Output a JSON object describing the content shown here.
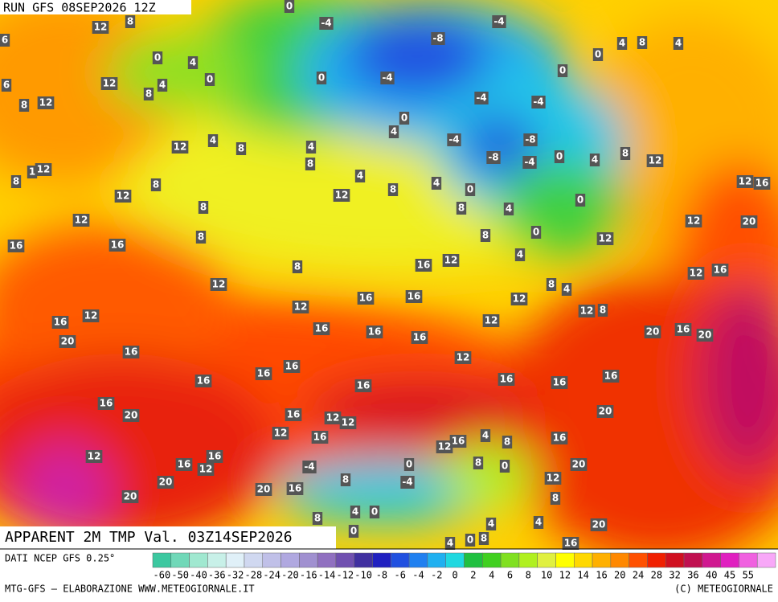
{
  "header": {
    "run": "RUN GFS 08SEP2026 12Z",
    "title": "APPARENT 2M TMP Val. 03Z14SEP2026"
  },
  "map": {
    "labels": [
      12,
      8,
      0,
      -4,
      -4,
      -8,
      6,
      0,
      4,
      0,
      12,
      4,
      6,
      8,
      0,
      -4,
      -4,
      -4,
      0,
      0,
      4,
      8,
      4,
      12,
      8,
      0,
      4,
      -4,
      -8,
      -8,
      -4,
      0,
      4,
      8,
      12,
      12,
      4,
      8,
      4,
      8,
      4,
      12,
      8,
      4,
      0,
      12,
      1,
      8,
      12,
      8,
      8,
      8,
      4,
      0,
      12,
      16,
      12,
      8,
      8,
      0,
      16,
      16,
      12,
      20,
      12,
      16,
      12,
      8,
      4,
      12,
      16,
      16,
      12,
      8,
      4,
      12,
      8,
      12,
      16,
      12,
      12,
      16,
      20,
      16,
      16,
      16,
      12,
      20,
      16,
      20,
      16,
      12,
      16,
      16,
      16,
      16,
      16,
      16,
      16,
      16,
      20,
      20,
      16,
      12,
      12,
      12,
      16,
      16,
      12,
      4,
      8,
      16,
      12,
      16,
      16,
      12,
      -4,
      0,
      8,
      0,
      20,
      8,
      -4,
      20,
      20,
      16,
      12,
      20,
      8,
      8,
      4,
      0,
      0,
      4,
      20,
      4,
      4,
      0,
      8,
      16
    ]
  },
  "legend": {
    "source": "DATI NCEP GFS 0.25°",
    "ticks": [
      -60,
      -50,
      -40,
      -36,
      -32,
      -28,
      -24,
      -20,
      -16,
      -14,
      -12,
      -10,
      -8,
      -6,
      -4,
      -2,
      0,
      2,
      4,
      6,
      8,
      10,
      12,
      14,
      16,
      20,
      24,
      28,
      32,
      36,
      40,
      45,
      55
    ],
    "colors": [
      "#3cc8a0",
      "#70d8b8",
      "#a0e8d0",
      "#c8f0e8",
      "#e0f0f8",
      "#d0d8f0",
      "#c0c0e8",
      "#b0a8e0",
      "#a090d0",
      "#9070c0",
      "#7050b0",
      "#4030a0",
      "#2020c0",
      "#2050e0",
      "#2080f0",
      "#20b0f0",
      "#20d8e0",
      "#20c040",
      "#40d020",
      "#80e020",
      "#b0f020",
      "#e0f040",
      "#ffff00",
      "#ffd800",
      "#ffb000",
      "#ff8800",
      "#ff5000",
      "#f02000",
      "#d01020",
      "#c01050",
      "#d01890",
      "#e020c0",
      "#f060e0",
      "#f8a8f8"
    ]
  },
  "footer": {
    "credit": "MTG-GFS – ELABORAZIONE WWW.METEOGIORNALE.IT",
    "copyright": "(C) METEOGIORNALE"
  }
}
